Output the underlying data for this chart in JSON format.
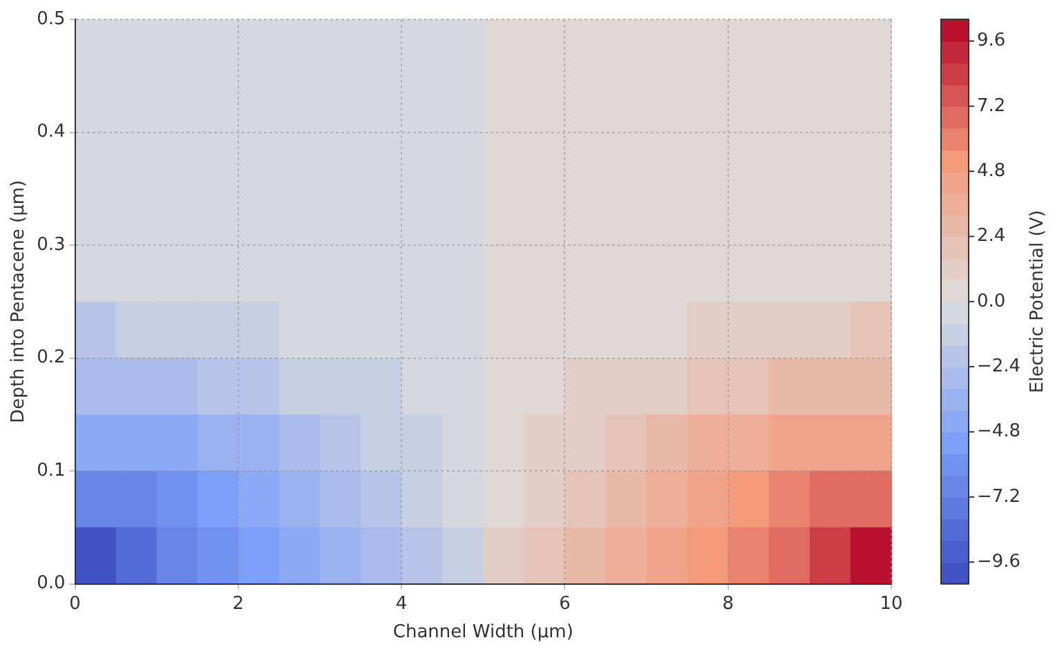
{
  "chart_data": {
    "type": "heatmap",
    "xlabel": "Channel Width (µm)",
    "ylabel": "Depth into Pentacene (µm)",
    "clabel": "Electric Potential (V)",
    "x": [
      0.25,
      0.75,
      1.25,
      1.75,
      2.25,
      2.75,
      3.25,
      3.75,
      4.25,
      4.75,
      5.25,
      5.75,
      6.25,
      6.75,
      7.25,
      7.75,
      8.25,
      8.75,
      9.25,
      9.75
    ],
    "xlim": [
      0,
      10
    ],
    "xticks": [
      0,
      2,
      4,
      6,
      8,
      10
    ],
    "ylim": [
      0,
      0.5
    ],
    "yticks": [
      {
        "value": 0,
        "label": "0.0"
      },
      0.1,
      0.2,
      0.3,
      0.4,
      0.5
    ],
    "clim": [
      -10.4,
      10.4
    ],
    "cticks": [
      {
        "value": -9.6,
        "label": "−9.6"
      },
      {
        "value": -7.2,
        "label": "−7.2"
      },
      {
        "value": -4.8,
        "label": "−4.8"
      },
      {
        "value": -2.4,
        "label": "−2.4"
      },
      {
        "value": 0,
        "label": "0.0"
      },
      2.4,
      4.8,
      7.2,
      9.6
    ],
    "grid": true,
    "cells": [
      [
        -0.4,
        -0.4,
        -0.4,
        -0.4,
        -0.4,
        -0.4,
        -0.4,
        -0.4,
        -0.4,
        -0.4,
        0.4,
        0.4,
        0.4,
        0.4,
        0.4,
        0.4,
        0.4,
        0.4,
        0.4,
        0.4
      ],
      [
        -0.4,
        -0.4,
        -0.4,
        -0.4,
        -0.4,
        -0.4,
        -0.4,
        -0.4,
        -0.4,
        -0.4,
        0.4,
        0.4,
        0.4,
        0.4,
        0.4,
        0.4,
        0.4,
        0.4,
        0.4,
        0.4
      ],
      [
        -0.4,
        -0.4,
        -0.4,
        -0.4,
        -0.4,
        -0.4,
        -0.4,
        -0.4,
        -0.4,
        -0.4,
        0.4,
        0.4,
        0.4,
        0.4,
        0.4,
        0.4,
        0.4,
        0.4,
        0.4,
        0.4
      ],
      [
        -0.4,
        -0.4,
        -0.4,
        -0.4,
        -0.4,
        -0.4,
        -0.4,
        -0.4,
        -0.4,
        -0.4,
        0.4,
        0.4,
        0.4,
        0.4,
        0.4,
        0.4,
        0.4,
        0.4,
        0.4,
        0.4
      ],
      [
        -0.4,
        -0.4,
        -0.4,
        -0.4,
        -0.4,
        -0.4,
        -0.4,
        -0.4,
        -0.4,
        -0.4,
        0.4,
        0.4,
        0.4,
        0.4,
        0.4,
        0.4,
        0.4,
        0.4,
        0.4,
        0.4
      ],
      [
        -2.0,
        -1.2,
        -1.2,
        -1.2,
        -1.2,
        -0.4,
        -0.4,
        -0.4,
        -0.4,
        -0.4,
        0.4,
        0.4,
        0.4,
        0.4,
        0.4,
        1.2,
        1.2,
        1.2,
        1.2,
        2.0
      ],
      [
        -2.8,
        -2.8,
        -2.8,
        -2.0,
        -2.0,
        -1.2,
        -1.2,
        -1.2,
        -0.4,
        -0.4,
        0.4,
        0.4,
        1.2,
        1.2,
        1.2,
        2.0,
        2.0,
        2.8,
        2.8,
        2.8
      ],
      [
        -4.4,
        -4.4,
        -4.4,
        -3.6,
        -3.6,
        -2.8,
        -2.0,
        -1.2,
        -1.2,
        -0.4,
        0.4,
        1.2,
        1.2,
        2.0,
        2.8,
        3.6,
        3.6,
        4.4,
        4.4,
        4.4
      ],
      [
        -6.8,
        -6.8,
        -6.0,
        -5.2,
        -4.4,
        -3.6,
        -2.8,
        -2.0,
        -1.2,
        -0.4,
        0.4,
        1.2,
        2.0,
        2.8,
        3.6,
        4.4,
        5.2,
        6.0,
        6.8,
        6.8
      ],
      [
        -10.0,
        -8.4,
        -6.8,
        -6.0,
        -5.2,
        -4.4,
        -3.6,
        -2.8,
        -2.0,
        -1.2,
        1.2,
        2.0,
        2.8,
        3.6,
        4.4,
        5.2,
        6.0,
        6.8,
        8.4,
        10.0
      ]
    ]
  }
}
